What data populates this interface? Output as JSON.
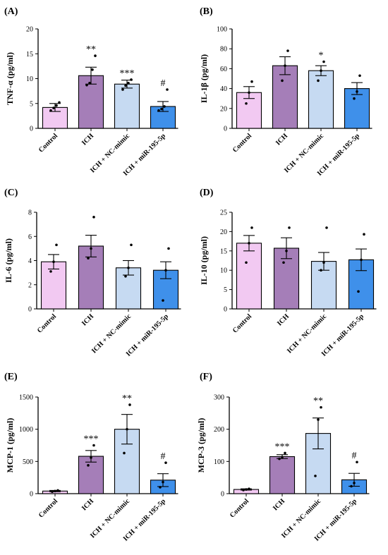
{
  "colors": {
    "Control": "#f2c9f2",
    "ICH": "#a57eb8",
    "ICH + NC-mimic": "#c6daf2",
    "ICH + miR-195-5p": "#3f90ea",
    "axis": "#000000"
  },
  "chart_data": [
    {
      "type": "bar",
      "panel": "(A)",
      "ylabel": "TNF-α (pg/ml)",
      "ylim": [
        0,
        20
      ],
      "yticks": [
        0,
        5,
        10,
        15,
        20
      ],
      "categories": [
        "Control",
        "ICH",
        "ICH + NC-mimic",
        "ICH + miR-195-5p"
      ],
      "values": [
        4.2,
        10.6,
        8.9,
        4.4
      ],
      "errors": [
        0.8,
        1.7,
        0.8,
        1.0
      ],
      "points": [
        [
          3.6,
          4.1,
          4.6,
          5.2
        ],
        [
          8.7,
          9.1,
          11.8,
          14.6
        ],
        [
          7.8,
          8.6,
          9.1,
          9.8
        ],
        [
          3.6,
          3.9,
          4.4,
          7.8
        ]
      ],
      "significance": [
        "",
        "**",
        "***",
        "#"
      ]
    },
    {
      "type": "bar",
      "panel": "(B)",
      "ylabel": "IL-1β (pg/ml)",
      "ylim": [
        0,
        100
      ],
      "yticks": [
        0,
        20,
        40,
        60,
        80,
        100
      ],
      "categories": [
        "Control",
        "ICH",
        "ICH + NC-mimic",
        "ICH + miR-195-5p"
      ],
      "values": [
        36,
        63,
        58,
        40
      ],
      "errors": [
        6,
        9,
        5,
        6
      ],
      "points": [
        [
          25,
          36,
          47
        ],
        [
          48,
          63,
          78
        ],
        [
          48,
          58,
          67
        ],
        [
          30,
          37,
          53
        ]
      ],
      "significance": [
        "",
        "",
        "*",
        ""
      ]
    },
    {
      "type": "bar",
      "panel": "(C)",
      "ylabel": "IL-6 (pg/ml)",
      "ylim": [
        0,
        8
      ],
      "yticks": [
        0,
        2,
        4,
        6,
        8
      ],
      "categories": [
        "Control",
        "ICH",
        "ICH + NC-mimic",
        "ICH + miR-195-5p"
      ],
      "values": [
        3.9,
        5.2,
        3.4,
        3.2
      ],
      "errors": [
        0.6,
        0.9,
        0.6,
        0.7
      ],
      "points": [
        [
          3.1,
          3.9,
          5.3
        ],
        [
          4.2,
          5.0,
          7.6
        ],
        [
          2.7,
          3.4,
          5.3
        ],
        [
          0.7,
          3.2,
          5.0
        ]
      ],
      "significance": [
        "",
        "",
        "",
        ""
      ]
    },
    {
      "type": "bar",
      "panel": "(D)",
      "ylabel": "IL-10 (pg/ml)",
      "ylim": [
        0,
        25
      ],
      "yticks": [
        0,
        5,
        10,
        15,
        20,
        25
      ],
      "categories": [
        "Control",
        "ICH",
        "ICH + NC-mimic",
        "ICH + miR-195-5p"
      ],
      "values": [
        17,
        15.7,
        12.3,
        12.7
      ],
      "errors": [
        2,
        2.7,
        2.3,
        2.8
      ],
      "points": [
        [
          12,
          17,
          21
        ],
        [
          12,
          15,
          21
        ],
        [
          10,
          12,
          21
        ],
        [
          4.5,
          12.7,
          19.3
        ]
      ],
      "significance": [
        "",
        "",
        "",
        ""
      ]
    },
    {
      "type": "bar",
      "panel": "(E)",
      "ylabel": "MCP-1 (pg/ml)",
      "ylim": [
        0,
        1500
      ],
      "yticks": [
        0,
        500,
        1000,
        1500
      ],
      "categories": [
        "Control",
        "ICH",
        "ICH + NC-mimic",
        "ICH + miR-195-5p"
      ],
      "values": [
        40,
        580,
        1000,
        210
      ],
      "errors": [
        10,
        90,
        230,
        100
      ],
      "points": [
        [
          30,
          40,
          50
        ],
        [
          440,
          560,
          750
        ],
        [
          630,
          1000,
          1380
        ],
        [
          100,
          180,
          480
        ]
      ],
      "significance": [
        "",
        "***",
        "**",
        "#"
      ]
    },
    {
      "type": "bar",
      "panel": "(F)",
      "ylabel": "MCP-3 (pg/ml)",
      "ylim": [
        0,
        300
      ],
      "yticks": [
        0,
        100,
        200,
        300
      ],
      "categories": [
        "Control",
        "ICH",
        "ICH + NC-mimic",
        "ICH + miR-195-5p"
      ],
      "values": [
        13,
        115,
        187,
        43
      ],
      "errors": [
        2,
        6,
        48,
        20
      ],
      "points": [
        [
          11,
          13,
          15
        ],
        [
          108,
          113,
          126
        ],
        [
          55,
          230,
          268
        ],
        [
          23,
          33,
          98
        ]
      ],
      "significance": [
        "",
        "***",
        "**",
        "#"
      ]
    }
  ]
}
